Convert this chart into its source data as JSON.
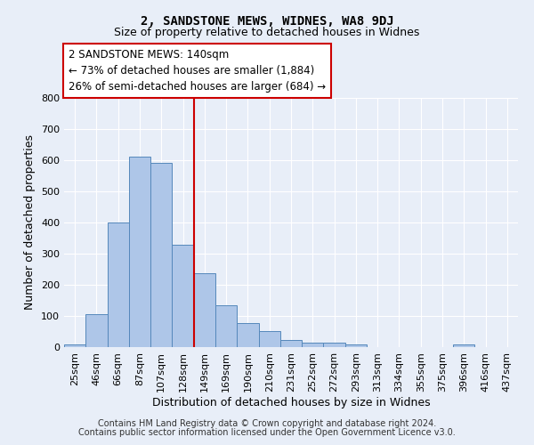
{
  "title": "2, SANDSTONE MEWS, WIDNES, WA8 9DJ",
  "subtitle": "Size of property relative to detached houses in Widnes",
  "xlabel": "Distribution of detached houses by size in Widnes",
  "ylabel": "Number of detached properties",
  "bin_labels": [
    "25sqm",
    "46sqm",
    "66sqm",
    "87sqm",
    "107sqm",
    "128sqm",
    "149sqm",
    "169sqm",
    "190sqm",
    "210sqm",
    "231sqm",
    "252sqm",
    "272sqm",
    "293sqm",
    "313sqm",
    "334sqm",
    "355sqm",
    "375sqm",
    "396sqm",
    "416sqm",
    "437sqm"
  ],
  "bar_heights": [
    8,
    105,
    400,
    610,
    590,
    330,
    238,
    135,
    77,
    52,
    22,
    15,
    15,
    8,
    0,
    0,
    0,
    0,
    8,
    0,
    0
  ],
  "bar_color": "#aec6e8",
  "bar_edge_color": "#5588bb",
  "red_line_x": 5.5,
  "annotation_text": "2 SANDSTONE MEWS: 140sqm\n← 73% of detached houses are smaller (1,884)\n26% of semi-detached houses are larger (684) →",
  "annotation_box_color": "#ffffff",
  "annotation_box_edge": "#cc0000",
  "ylim": [
    0,
    800
  ],
  "yticks": [
    0,
    100,
    200,
    300,
    400,
    500,
    600,
    700,
    800
  ],
  "footnote1": "Contains HM Land Registry data © Crown copyright and database right 2024.",
  "footnote2": "Contains public sector information licensed under the Open Government Licence v3.0.",
  "background_color": "#e8eef8",
  "grid_color": "#ffffff",
  "title_fontsize": 10,
  "subtitle_fontsize": 9,
  "label_fontsize": 9,
  "tick_fontsize": 8,
  "annotation_fontsize": 8.5,
  "footnote_fontsize": 7
}
